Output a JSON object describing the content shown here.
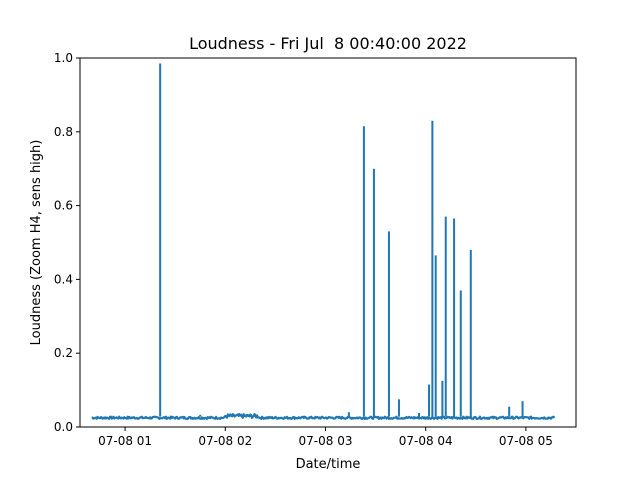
{
  "chart_data": {
    "type": "line",
    "title": "Loudness - Fri Jul  8 00:40:00 2022",
    "xlabel": "Date/time",
    "ylabel": "Loudness (Zoom H4, sens high)",
    "x_range": [
      "2022-07-08 00:33",
      "2022-07-08 05:30"
    ],
    "ylim": [
      0,
      1.0
    ],
    "grid": false,
    "legend": "none",
    "x_ticks": [
      {
        "time": "2022-07-08 01:00",
        "label": "07-08 01"
      },
      {
        "time": "2022-07-08 02:00",
        "label": "07-08 02"
      },
      {
        "time": "2022-07-08 03:00",
        "label": "07-08 03"
      },
      {
        "time": "2022-07-08 04:00",
        "label": "07-08 04"
      },
      {
        "time": "2022-07-08 05:00",
        "label": "07-08 05"
      }
    ],
    "y_ticks": [
      {
        "value": 0.0,
        "label": "0.0"
      },
      {
        "value": 0.2,
        "label": "0.2"
      },
      {
        "value": 0.4,
        "label": "0.4"
      },
      {
        "value": 0.6,
        "label": "0.6"
      },
      {
        "value": 0.8,
        "label": "0.8"
      },
      {
        "value": 1.0,
        "label": "1.0"
      }
    ],
    "series": [
      {
        "color": "#1f77b4",
        "baseline": {
          "start": "2022-07-08 00:40",
          "end": "2022-07-08 05:17",
          "value_range": [
            0.022,
            0.028
          ],
          "segments": [
            {
              "start": "2022-07-08 02:00",
              "end": "2022-07-08 02:20",
              "value_range": [
                0.024,
                0.035
              ]
            }
          ]
        },
        "peaks": [
          {
            "time": "2022-07-08 01:21",
            "value": 0.985
          },
          {
            "time": "2022-07-08 01:45",
            "value": 0.033
          },
          {
            "time": "2022-07-08 03:14",
            "value": 0.04
          },
          {
            "time": "2022-07-08 03:23",
            "value": 0.815
          },
          {
            "time": "2022-07-08 03:29",
            "value": 0.7
          },
          {
            "time": "2022-07-08 03:38",
            "value": 0.53
          },
          {
            "time": "2022-07-08 03:44",
            "value": 0.075
          },
          {
            "time": "2022-07-08 03:56",
            "value": 0.038
          },
          {
            "time": "2022-07-08 04:02",
            "value": 0.115
          },
          {
            "time": "2022-07-08 04:04",
            "value": 0.83
          },
          {
            "time": "2022-07-08 04:06",
            "value": 0.465
          },
          {
            "time": "2022-07-08 04:10",
            "value": 0.125
          },
          {
            "time": "2022-07-08 04:12",
            "value": 0.57
          },
          {
            "time": "2022-07-08 04:17",
            "value": 0.565
          },
          {
            "time": "2022-07-08 04:21",
            "value": 0.37
          },
          {
            "time": "2022-07-08 04:27",
            "value": 0.48
          },
          {
            "time": "2022-07-08 04:50",
            "value": 0.055
          },
          {
            "time": "2022-07-08 04:58",
            "value": 0.07
          }
        ]
      }
    ]
  }
}
